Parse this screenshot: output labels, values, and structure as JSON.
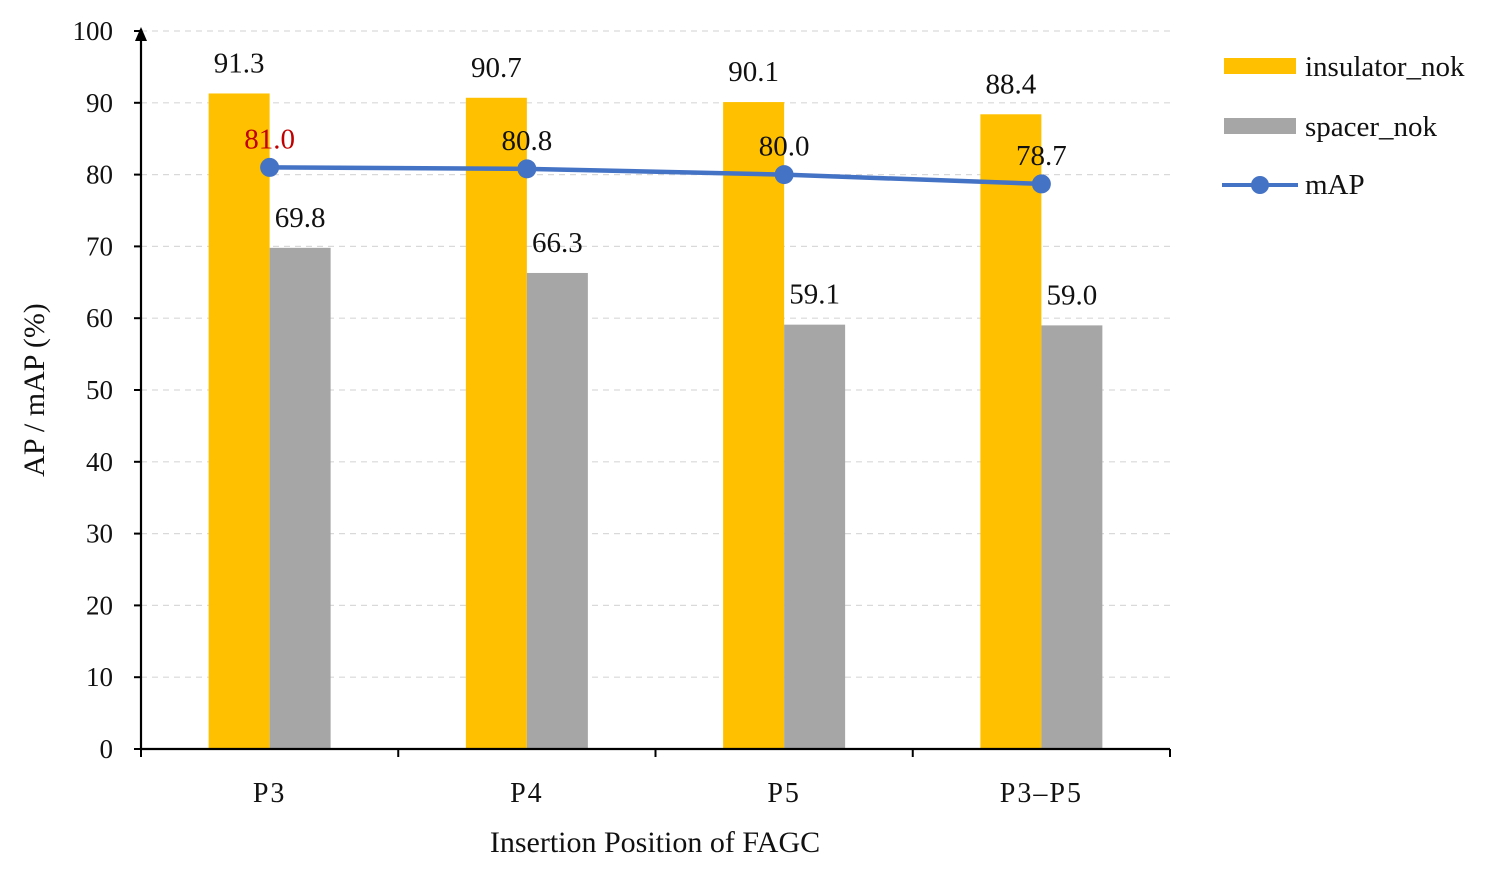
{
  "chart_data": {
    "type": "bar",
    "xlabel": "Insertion Position of FAGC",
    "ylabel": "AP / mAP (%)",
    "ylim": [
      0,
      100
    ],
    "yticks": [
      0,
      10,
      20,
      30,
      40,
      50,
      60,
      70,
      80,
      90,
      100
    ],
    "categories": [
      "P3",
      "P4",
      "P5",
      "P3–P5"
    ],
    "grid": "horizontal dashed",
    "legend_position": "right",
    "series": [
      {
        "name": "insulator_nok",
        "kind": "bar",
        "color": "#FFC000",
        "values": [
          91.3,
          90.7,
          90.1,
          88.4
        ],
        "value_labels": [
          "91.3",
          "90.7",
          "90.1",
          "88.4"
        ]
      },
      {
        "name": "spacer_nok",
        "kind": "bar",
        "color": "#A6A6A6",
        "values": [
          69.8,
          66.3,
          59.1,
          59.0
        ],
        "value_labels": [
          "69.8",
          "66.3",
          "59.1",
          "59.0"
        ]
      },
      {
        "name": "mAP",
        "kind": "line",
        "color": "#4472C4",
        "values": [
          81.0,
          80.8,
          80.0,
          78.7
        ],
        "value_labels": [
          "81.0",
          "80.8",
          "80.0",
          "78.7"
        ],
        "highlight_color": "#C00000",
        "highlight_index": 0
      }
    ]
  }
}
